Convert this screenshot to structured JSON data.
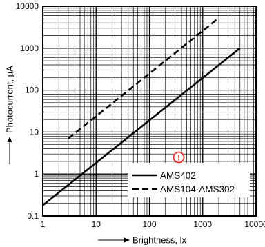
{
  "chart_data": {
    "type": "line",
    "xscale": "log",
    "yscale": "log",
    "xlim": [
      1,
      10000
    ],
    "ylim": [
      0.1,
      10000
    ],
    "grid": true,
    "xlabel": "Brightness, lx",
    "ylabel": "Photocurrent, μA",
    "x_ticks": [
      "1",
      "10",
      "100",
      "1000",
      "10000"
    ],
    "y_ticks": [
      "0.1",
      "1",
      "10",
      "100",
      "1000",
      "10000"
    ],
    "legend_position": "bottom-right",
    "series": [
      {
        "name": "AMS402",
        "style": "solid",
        "x": [
          1,
          5000
        ],
        "y": [
          0.18,
          1000
        ]
      },
      {
        "name": "AMS104·AMS302",
        "style": "dashed",
        "x": [
          3,
          1800
        ],
        "y": [
          7,
          4700
        ]
      }
    ],
    "annotation": {
      "type": "warning-icon",
      "symbol": "!",
      "color": "#e53030"
    }
  }
}
